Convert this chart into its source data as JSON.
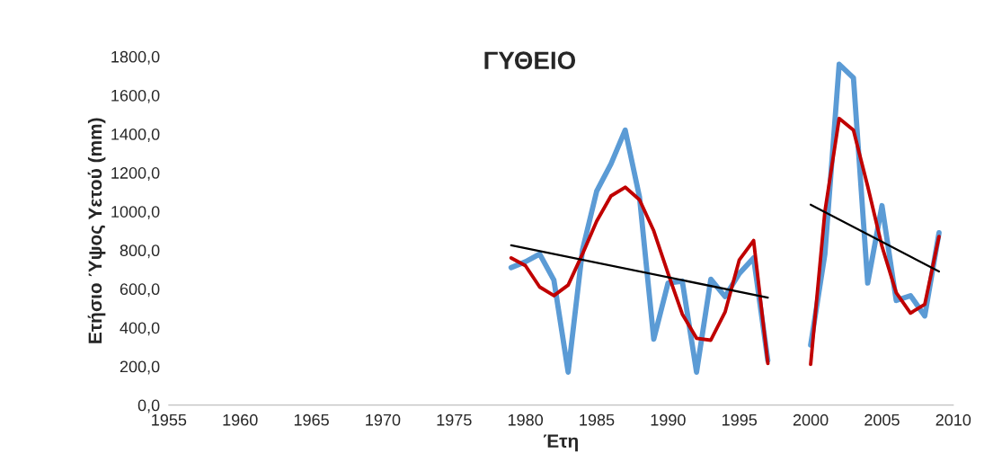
{
  "chart_data": {
    "type": "line",
    "title": "ΓΥΘΕΙΟ",
    "xlabel": "Έτη",
    "ylabel": "Ετήσιο Ύψος Υετού (mm)",
    "xlim": [
      1955,
      2010
    ],
    "xticks": [
      1955,
      1960,
      1965,
      1970,
      1975,
      1980,
      1985,
      1990,
      1995,
      2000,
      2005,
      2010
    ],
    "ylim": [
      0,
      1800
    ],
    "yticks": [
      {
        "value": 0,
        "label": "0,0"
      },
      {
        "value": 200,
        "label": "200,0"
      },
      {
        "value": 400,
        "label": "400,0"
      },
      {
        "value": 600,
        "label": "600,0"
      },
      {
        "value": 800,
        "label": "800,0"
      },
      {
        "value": 1000,
        "label": "1000,0"
      },
      {
        "value": 1200,
        "label": "1200,0"
      },
      {
        "value": 1400,
        "label": "1400,0"
      },
      {
        "value": 1600,
        "label": "1600,0"
      },
      {
        "value": 1800,
        "label": "1800,0"
      }
    ],
    "grid": false,
    "legend": false,
    "series": [
      {
        "color": "#5b9bd5",
        "x": [
          1979,
          1980,
          1981,
          1982,
          1983,
          1984,
          1985,
          1986,
          1987,
          1988,
          1989,
          1990,
          1991,
          1992,
          1993,
          1994,
          1995,
          1996,
          1997,
          1998,
          1999,
          2000,
          2001,
          2002,
          2003,
          2004,
          2005,
          2006,
          2007,
          2008,
          2009
        ],
        "values": [
          710,
          740,
          780,
          645,
          170,
          800,
          1105,
          1245,
          1420,
          1075,
          340,
          630,
          640,
          170,
          650,
          560,
          680,
          760,
          230,
          null,
          null,
          310,
          780,
          1760,
          1690,
          630,
          1030,
          540,
          565,
          460,
          890
        ]
      },
      {
        "color": "#c00000",
        "x": [
          1979,
          1980,
          1981,
          1982,
          1983,
          1984,
          1985,
          1986,
          1987,
          1988,
          1989,
          1990,
          1991,
          1992,
          1993,
          1994,
          1995,
          1996,
          1997,
          1998,
          1999,
          2000,
          2001,
          2002,
          2003,
          2004,
          2005,
          2006,
          2007,
          2008,
          2009
        ],
        "values": [
          760,
          720,
          610,
          565,
          620,
          780,
          950,
          1080,
          1125,
          1060,
          900,
          680,
          470,
          345,
          335,
          480,
          750,
          850,
          215,
          null,
          null,
          210,
          1000,
          1480,
          1420,
          1130,
          820,
          580,
          475,
          520,
          870
        ]
      },
      {
        "color": "#000000",
        "x": [
          1979,
          1997,
          1998,
          2000,
          2009
        ],
        "values": [
          825,
          555,
          null,
          1035,
          690
        ]
      }
    ]
  }
}
